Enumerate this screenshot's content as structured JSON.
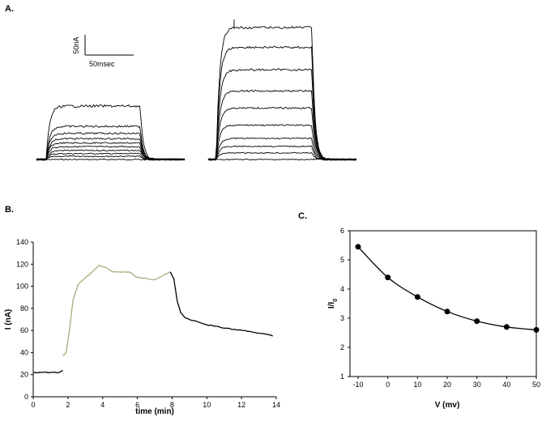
{
  "panels": {
    "a": {
      "label": "A."
    },
    "b": {
      "label": "B."
    },
    "c": {
      "label": "C."
    }
  },
  "scale_bar": {
    "current_label": "50nA",
    "time_label": "50msec"
  },
  "chart_data": [
    {
      "panel": "A.",
      "type": "line",
      "description_visible": "two families of whole-cell current traces",
      "trace_families": [
        {
          "trace_count": 10,
          "steady_levels_relative": [
            0.0,
            0.06,
            0.11,
            0.17,
            0.24,
            0.31,
            0.39,
            0.49,
            0.62,
            1.0
          ]
        },
        {
          "trace_count": 10,
          "steady_levels_relative": [
            0.0,
            0.05,
            0.1,
            0.16,
            0.26,
            0.39,
            0.52,
            0.68,
            0.85,
            1.0
          ]
        }
      ]
    },
    {
      "panel": "B.",
      "type": "line",
      "xlabel": "time (min)",
      "ylabel": "I (nA)",
      "xlim": [
        0,
        14
      ],
      "ylim": [
        0,
        140
      ],
      "xticks": [
        0,
        2,
        4,
        6,
        8,
        10,
        12,
        14
      ],
      "yticks": [
        0,
        20,
        40,
        60,
        80,
        100,
        120,
        140
      ],
      "series": [
        {
          "color": "#000000",
          "x": [
            0,
            0.5,
            1.0,
            1.5,
            1.7
          ],
          "y": [
            22,
            22,
            22,
            22,
            24
          ]
        },
        {
          "color": "#a4ae7c",
          "x": [
            1.7,
            1.9,
            2.1,
            2.3,
            2.6,
            3.0,
            3.4,
            3.8,
            4.2,
            4.6,
            5.0,
            5.5,
            6.0,
            6.5,
            7.0,
            7.5,
            7.9
          ],
          "y": [
            37,
            40,
            62,
            88,
            102,
            108,
            113,
            119,
            117,
            113,
            113,
            113,
            108,
            107,
            106,
            110,
            113
          ]
        },
        {
          "color": "#000000",
          "x": [
            7.9,
            8.1,
            8.3,
            8.5,
            8.8,
            9.2,
            9.8,
            10.4,
            11.0,
            11.6,
            12.2,
            12.8,
            13.3,
            13.8
          ],
          "y": [
            113,
            107,
            86,
            76,
            71,
            69,
            66,
            64,
            62,
            61,
            60,
            58,
            57,
            55
          ]
        }
      ]
    },
    {
      "panel": "C.",
      "type": "scatter",
      "xlabel": "V (mv)",
      "ylabel": "I/I",
      "ylabel_subscript": "0",
      "xlim": [
        -10,
        50
      ],
      "ylim": [
        1,
        6
      ],
      "xticks": [
        -10,
        0,
        10,
        20,
        30,
        40,
        50
      ],
      "yticks": [
        1,
        2,
        3,
        4,
        5,
        6
      ],
      "points": {
        "x": [
          -10,
          0,
          10,
          20,
          30,
          40,
          50
        ],
        "y": [
          5.45,
          4.4,
          3.73,
          3.23,
          2.9,
          2.7,
          2.6
        ]
      },
      "fit_curve": true
    }
  ]
}
